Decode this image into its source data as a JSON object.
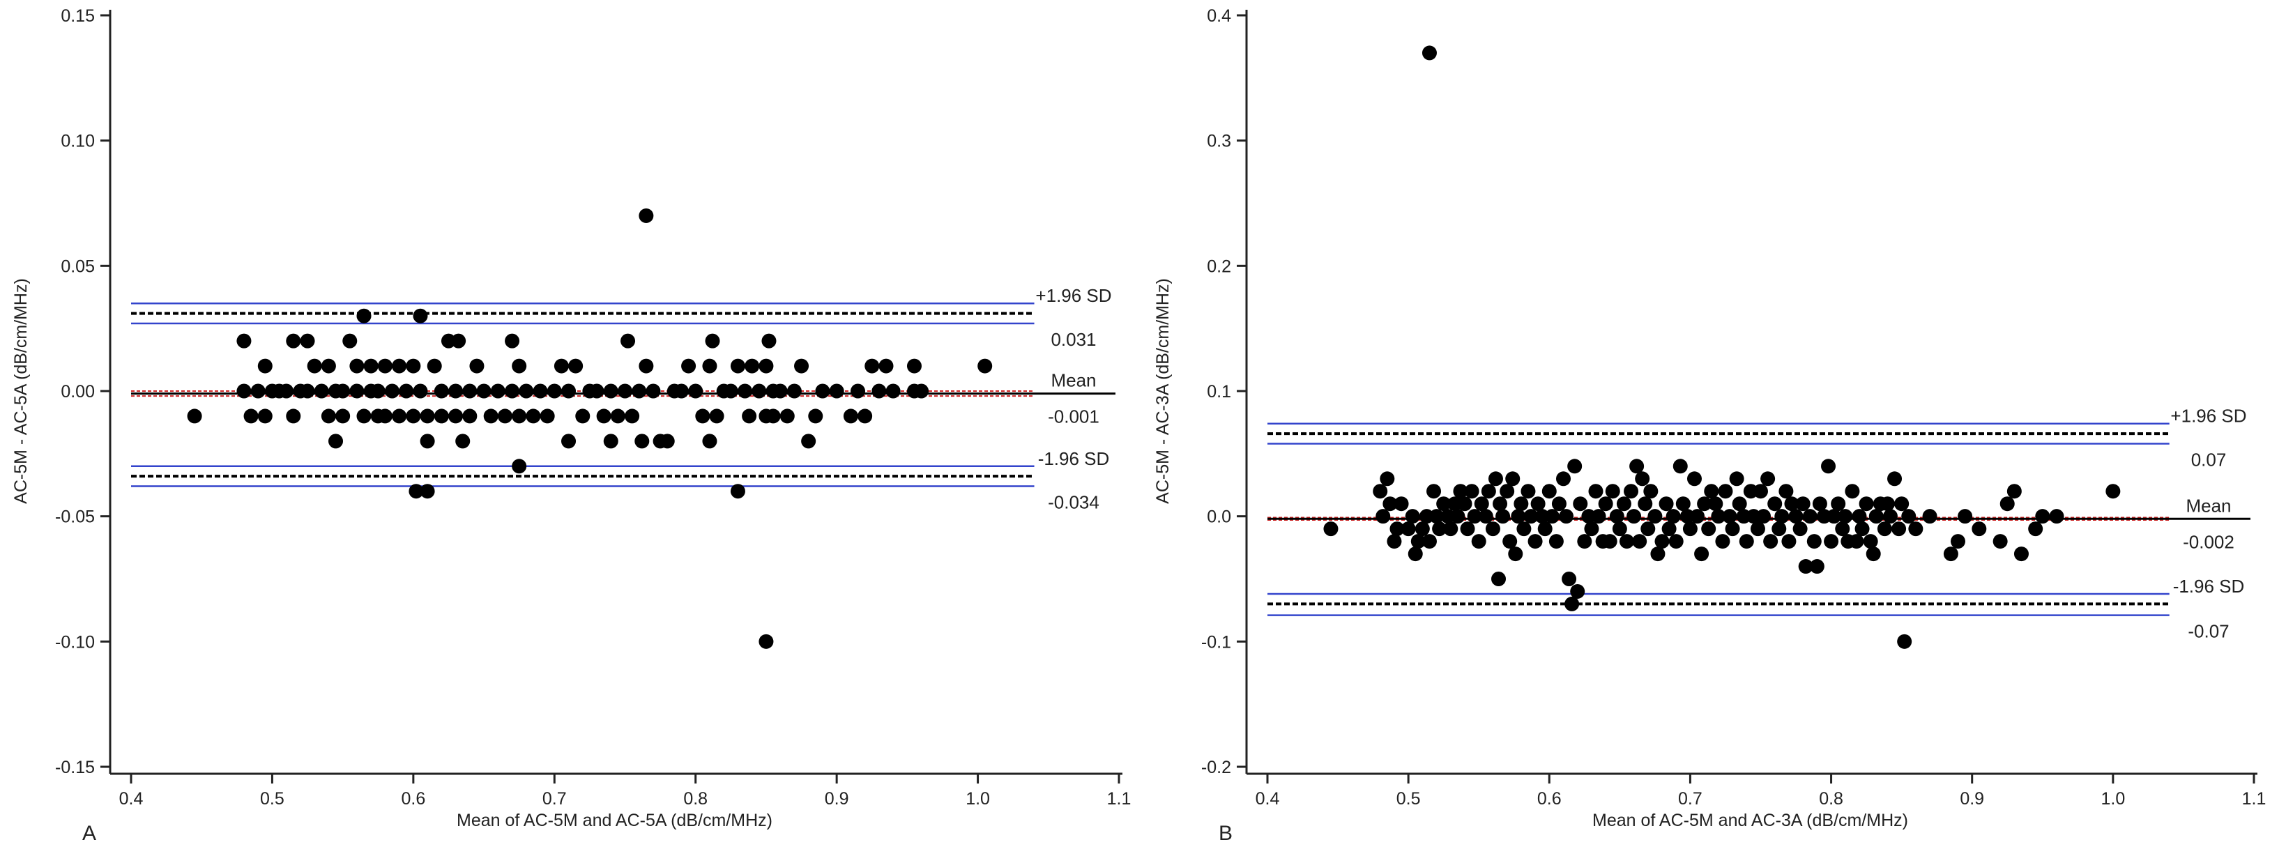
{
  "figure": {
    "panel_labels": [
      "A",
      "B"
    ]
  },
  "chart_data": [
    {
      "type": "scatter",
      "panel": "A",
      "title": "",
      "xlabel": "Mean of AC-5M and AC-5A (dB/cm/MHz)",
      "ylabel": "AC-5M - AC-5A (dB/cm/MHz)",
      "xlim": [
        0.4,
        1.1
      ],
      "ylim": [
        -0.15,
        0.15
      ],
      "xticks": [
        "0.4",
        "0.5",
        "0.6",
        "0.7",
        "0.8",
        "0.9",
        "1.0",
        "1.1"
      ],
      "yticks": [
        "-0.15",
        "-0.10",
        "-0.05",
        "0.00",
        "0.05",
        "0.10",
        "0.15"
      ],
      "lines": {
        "upper_loa": 0.031,
        "upper_ci": [
          0.027,
          0.035
        ],
        "mean": -0.001,
        "mean_ci": [
          -0.002,
          0.0
        ],
        "lower_loa": -0.034,
        "lower_ci": [
          -0.038,
          -0.03
        ],
        "line_xrange": [
          0.4,
          1.04
        ]
      },
      "annotations": {
        "upper_label": "+1.96 SD",
        "upper_value": "0.031",
        "mean_label": "Mean",
        "mean_value": "-0.001",
        "lower_label": "-1.96 SD",
        "lower_value": "-0.034"
      },
      "colors": {
        "points": "#000000",
        "ci_lines": "#3344cc",
        "mean_ci": "#cc2222",
        "loa": "#000000"
      },
      "points": [
        [
          0.445,
          -0.01
        ],
        [
          0.48,
          0.02
        ],
        [
          0.48,
          0.0
        ],
        [
          0.485,
          -0.01
        ],
        [
          0.49,
          0.0
        ],
        [
          0.495,
          0.01
        ],
        [
          0.495,
          -0.01
        ],
        [
          0.5,
          0.0
        ],
        [
          0.505,
          0.0
        ],
        [
          0.51,
          0.0
        ],
        [
          0.515,
          0.02
        ],
        [
          0.515,
          -0.01
        ],
        [
          0.52,
          0.0
        ],
        [
          0.525,
          0.02
        ],
        [
          0.525,
          0.0
        ],
        [
          0.53,
          0.01
        ],
        [
          0.535,
          0.0
        ],
        [
          0.54,
          0.01
        ],
        [
          0.54,
          -0.01
        ],
        [
          0.545,
          0.0
        ],
        [
          0.545,
          -0.02
        ],
        [
          0.55,
          0.0
        ],
        [
          0.55,
          -0.01
        ],
        [
          0.555,
          0.02
        ],
        [
          0.56,
          0.0
        ],
        [
          0.56,
          0.01
        ],
        [
          0.565,
          0.03
        ],
        [
          0.565,
          -0.01
        ],
        [
          0.57,
          0.0
        ],
        [
          0.57,
          0.01
        ],
        [
          0.575,
          -0.01
        ],
        [
          0.575,
          0.0
        ],
        [
          0.58,
          0.01
        ],
        [
          0.58,
          -0.01
        ],
        [
          0.585,
          0.0
        ],
        [
          0.59,
          0.01
        ],
        [
          0.59,
          -0.01
        ],
        [
          0.595,
          0.0
        ],
        [
          0.6,
          0.01
        ],
        [
          0.6,
          -0.01
        ],
        [
          0.602,
          -0.04
        ],
        [
          0.605,
          0.03
        ],
        [
          0.605,
          0.0
        ],
        [
          0.61,
          -0.01
        ],
        [
          0.61,
          -0.02
        ],
        [
          0.61,
          -0.04
        ],
        [
          0.615,
          0.01
        ],
        [
          0.62,
          0.0
        ],
        [
          0.62,
          -0.01
        ],
        [
          0.625,
          0.02
        ],
        [
          0.63,
          0.0
        ],
        [
          0.63,
          -0.01
        ],
        [
          0.632,
          0.02
        ],
        [
          0.635,
          -0.02
        ],
        [
          0.64,
          0.0
        ],
        [
          0.64,
          -0.01
        ],
        [
          0.645,
          0.01
        ],
        [
          0.65,
          0.0
        ],
        [
          0.655,
          -0.01
        ],
        [
          0.66,
          0.0
        ],
        [
          0.665,
          -0.01
        ],
        [
          0.67,
          0.0
        ],
        [
          0.67,
          0.02
        ],
        [
          0.675,
          0.01
        ],
        [
          0.675,
          -0.01
        ],
        [
          0.675,
          -0.03
        ],
        [
          0.68,
          0.0
        ],
        [
          0.685,
          -0.01
        ],
        [
          0.69,
          0.0
        ],
        [
          0.695,
          -0.01
        ],
        [
          0.7,
          0.0
        ],
        [
          0.705,
          0.01
        ],
        [
          0.71,
          0.0
        ],
        [
          0.71,
          -0.02
        ],
        [
          0.715,
          0.01
        ],
        [
          0.72,
          -0.01
        ],
        [
          0.725,
          0.0
        ],
        [
          0.73,
          0.0
        ],
        [
          0.735,
          -0.01
        ],
        [
          0.74,
          -0.02
        ],
        [
          0.74,
          0.0
        ],
        [
          0.745,
          -0.01
        ],
        [
          0.75,
          0.0
        ],
        [
          0.752,
          0.02
        ],
        [
          0.755,
          -0.01
        ],
        [
          0.76,
          0.0
        ],
        [
          0.762,
          -0.02
        ],
        [
          0.765,
          0.07
        ],
        [
          0.765,
          0.01
        ],
        [
          0.77,
          0.0
        ],
        [
          0.775,
          -0.02
        ],
        [
          0.78,
          -0.02
        ],
        [
          0.785,
          0.0
        ],
        [
          0.79,
          0.0
        ],
        [
          0.795,
          0.01
        ],
        [
          0.8,
          0.0
        ],
        [
          0.805,
          -0.01
        ],
        [
          0.81,
          0.01
        ],
        [
          0.81,
          -0.02
        ],
        [
          0.812,
          0.02
        ],
        [
          0.815,
          -0.01
        ],
        [
          0.82,
          0.0
        ],
        [
          0.825,
          0.0
        ],
        [
          0.83,
          0.01
        ],
        [
          0.83,
          -0.04
        ],
        [
          0.835,
          0.0
        ],
        [
          0.838,
          -0.01
        ],
        [
          0.84,
          0.01
        ],
        [
          0.845,
          0.0
        ],
        [
          0.85,
          0.01
        ],
        [
          0.85,
          -0.01
        ],
        [
          0.85,
          -0.1
        ],
        [
          0.852,
          0.02
        ],
        [
          0.855,
          -0.01
        ],
        [
          0.855,
          0.0
        ],
        [
          0.86,
          0.0
        ],
        [
          0.865,
          -0.01
        ],
        [
          0.87,
          0.0
        ],
        [
          0.875,
          0.01
        ],
        [
          0.88,
          -0.02
        ],
        [
          0.885,
          -0.01
        ],
        [
          0.89,
          0.0
        ],
        [
          0.9,
          0.0
        ],
        [
          0.91,
          -0.01
        ],
        [
          0.915,
          0.0
        ],
        [
          0.92,
          -0.01
        ],
        [
          0.925,
          0.01
        ],
        [
          0.93,
          0.0
        ],
        [
          0.935,
          0.01
        ],
        [
          0.94,
          0.0
        ],
        [
          0.955,
          0.0
        ],
        [
          0.955,
          0.01
        ],
        [
          0.96,
          0.0
        ],
        [
          1.005,
          0.01
        ]
      ]
    },
    {
      "type": "scatter",
      "panel": "B",
      "title": "",
      "xlabel": "Mean of AC-5M and AC-3A (dB/cm/MHz)",
      "ylabel": "AC-5M - AC-3A (dB/cm/MHz)",
      "xlim": [
        0.4,
        1.1
      ],
      "ylim": [
        -0.2,
        0.4
      ],
      "xticks": [
        "0.4",
        "0.5",
        "0.6",
        "0.7",
        "0.8",
        "0.9",
        "1.0",
        "1.1"
      ],
      "yticks": [
        "-0.2",
        "-0.1",
        "0.0",
        "0.1",
        "0.2",
        "0.3",
        "0.4"
      ],
      "lines": {
        "upper_loa": 0.066,
        "upper_ci": [
          0.058,
          0.074
        ],
        "mean": -0.002,
        "mean_ci": [
          -0.003,
          -0.001
        ],
        "lower_loa": -0.07,
        "lower_ci": [
          -0.079,
          -0.062
        ],
        "line_xrange": [
          0.4,
          1.04
        ]
      },
      "annotations": {
        "upper_label": "+1.96 SD",
        "upper_value": "0.07",
        "mean_label": "Mean",
        "mean_value": "-0.002",
        "lower_label": "-1.96 SD",
        "lower_value": "-0.07"
      },
      "colors": {
        "points": "#000000",
        "ci_lines": "#3344cc",
        "mean_ci": "#cc2222",
        "loa": "#000000"
      },
      "points": [
        [
          0.445,
          -0.01
        ],
        [
          0.48,
          0.02
        ],
        [
          0.482,
          0.0
        ],
        [
          0.485,
          0.03
        ],
        [
          0.487,
          0.01
        ],
        [
          0.49,
          -0.02
        ],
        [
          0.492,
          -0.01
        ],
        [
          0.495,
          0.01
        ],
        [
          0.5,
          -0.01
        ],
        [
          0.503,
          0.0
        ],
        [
          0.505,
          -0.03
        ],
        [
          0.507,
          -0.02
        ],
        [
          0.51,
          -0.01
        ],
        [
          0.513,
          0.0
        ],
        [
          0.515,
          0.37
        ],
        [
          0.515,
          -0.02
        ],
        [
          0.518,
          0.02
        ],
        [
          0.52,
          0.0
        ],
        [
          0.522,
          -0.01
        ],
        [
          0.525,
          0.01
        ],
        [
          0.528,
          0.0
        ],
        [
          0.53,
          -0.01
        ],
        [
          0.533,
          0.01
        ],
        [
          0.535,
          0.0
        ],
        [
          0.537,
          0.02
        ],
        [
          0.54,
          0.01
        ],
        [
          0.542,
          -0.01
        ],
        [
          0.545,
          0.02
        ],
        [
          0.547,
          0.0
        ],
        [
          0.55,
          -0.02
        ],
        [
          0.552,
          0.01
        ],
        [
          0.555,
          0.0
        ],
        [
          0.557,
          0.02
        ],
        [
          0.56,
          -0.01
        ],
        [
          0.562,
          0.03
        ],
        [
          0.564,
          -0.05
        ],
        [
          0.565,
          0.01
        ],
        [
          0.567,
          0.0
        ],
        [
          0.57,
          0.02
        ],
        [
          0.572,
          -0.02
        ],
        [
          0.574,
          0.03
        ],
        [
          0.576,
          -0.03
        ],
        [
          0.578,
          0.0
        ],
        [
          0.58,
          0.01
        ],
        [
          0.582,
          -0.01
        ],
        [
          0.585,
          0.02
        ],
        [
          0.587,
          0.0
        ],
        [
          0.59,
          -0.02
        ],
        [
          0.592,
          0.01
        ],
        [
          0.595,
          0.0
        ],
        [
          0.597,
          -0.01
        ],
        [
          0.6,
          0.02
        ],
        [
          0.602,
          0.0
        ],
        [
          0.605,
          -0.02
        ],
        [
          0.607,
          0.01
        ],
        [
          0.61,
          0.03
        ],
        [
          0.612,
          0.0
        ],
        [
          0.614,
          -0.05
        ],
        [
          0.616,
          -0.07
        ],
        [
          0.618,
          0.04
        ],
        [
          0.62,
          -0.06
        ],
        [
          0.622,
          0.01
        ],
        [
          0.625,
          -0.02
        ],
        [
          0.628,
          0.0
        ],
        [
          0.63,
          -0.01
        ],
        [
          0.633,
          0.02
        ],
        [
          0.635,
          0.0
        ],
        [
          0.638,
          -0.02
        ],
        [
          0.64,
          0.01
        ],
        [
          0.643,
          -0.02
        ],
        [
          0.645,
          0.02
        ],
        [
          0.648,
          0.0
        ],
        [
          0.65,
          -0.01
        ],
        [
          0.653,
          0.01
        ],
        [
          0.655,
          -0.02
        ],
        [
          0.658,
          0.02
        ],
        [
          0.66,
          0.0
        ],
        [
          0.662,
          0.04
        ],
        [
          0.664,
          -0.02
        ],
        [
          0.666,
          0.03
        ],
        [
          0.668,
          0.01
        ],
        [
          0.67,
          -0.01
        ],
        [
          0.672,
          0.02
        ],
        [
          0.675,
          0.0
        ],
        [
          0.677,
          -0.03
        ],
        [
          0.68,
          -0.02
        ],
        [
          0.683,
          0.01
        ],
        [
          0.685,
          -0.01
        ],
        [
          0.688,
          0.0
        ],
        [
          0.69,
          -0.02
        ],
        [
          0.693,
          0.04
        ],
        [
          0.695,
          0.01
        ],
        [
          0.698,
          0.0
        ],
        [
          0.7,
          -0.01
        ],
        [
          0.703,
          0.03
        ],
        [
          0.705,
          0.0
        ],
        [
          0.708,
          -0.03
        ],
        [
          0.71,
          0.01
        ],
        [
          0.713,
          -0.01
        ],
        [
          0.715,
          0.02
        ],
        [
          0.718,
          0.01
        ],
        [
          0.72,
          0.0
        ],
        [
          0.723,
          -0.02
        ],
        [
          0.725,
          0.02
        ],
        [
          0.728,
          0.0
        ],
        [
          0.73,
          -0.01
        ],
        [
          0.733,
          0.03
        ],
        [
          0.735,
          0.01
        ],
        [
          0.738,
          0.0
        ],
        [
          0.74,
          -0.02
        ],
        [
          0.743,
          0.02
        ],
        [
          0.745,
          0.0
        ],
        [
          0.748,
          -0.01
        ],
        [
          0.75,
          0.02
        ],
        [
          0.752,
          0.0
        ],
        [
          0.755,
          0.03
        ],
        [
          0.757,
          -0.02
        ],
        [
          0.76,
          0.01
        ],
        [
          0.763,
          -0.01
        ],
        [
          0.765,
          0.0
        ],
        [
          0.768,
          0.02
        ],
        [
          0.77,
          -0.02
        ],
        [
          0.772,
          0.01
        ],
        [
          0.775,
          0.0
        ],
        [
          0.778,
          -0.01
        ],
        [
          0.78,
          0.01
        ],
        [
          0.782,
          -0.04
        ],
        [
          0.785,
          0.0
        ],
        [
          0.788,
          -0.02
        ],
        [
          0.79,
          -0.04
        ],
        [
          0.792,
          0.01
        ],
        [
          0.795,
          0.0
        ],
        [
          0.798,
          0.04
        ],
        [
          0.8,
          -0.02
        ],
        [
          0.802,
          0.0
        ],
        [
          0.805,
          0.01
        ],
        [
          0.808,
          -0.01
        ],
        [
          0.81,
          0.0
        ],
        [
          0.812,
          -0.02
        ],
        [
          0.815,
          0.02
        ],
        [
          0.818,
          -0.02
        ],
        [
          0.82,
          0.0
        ],
        [
          0.822,
          -0.01
        ],
        [
          0.825,
          0.01
        ],
        [
          0.828,
          -0.02
        ],
        [
          0.83,
          -0.03
        ],
        [
          0.832,
          0.0
        ],
        [
          0.835,
          0.01
        ],
        [
          0.838,
          -0.01
        ],
        [
          0.84,
          0.01
        ],
        [
          0.842,
          0.0
        ],
        [
          0.845,
          0.03
        ],
        [
          0.848,
          -0.01
        ],
        [
          0.85,
          0.01
        ],
        [
          0.852,
          -0.1
        ],
        [
          0.855,
          0.0
        ],
        [
          0.86,
          -0.01
        ],
        [
          0.87,
          0.0
        ],
        [
          0.885,
          -0.03
        ],
        [
          0.89,
          -0.02
        ],
        [
          0.895,
          0.0
        ],
        [
          0.905,
          -0.01
        ],
        [
          0.92,
          -0.02
        ],
        [
          0.925,
          0.01
        ],
        [
          0.93,
          0.02
        ],
        [
          0.935,
          -0.03
        ],
        [
          0.945,
          -0.01
        ],
        [
          0.95,
          0.0
        ],
        [
          0.96,
          0.0
        ],
        [
          1.0,
          0.02
        ]
      ]
    }
  ]
}
